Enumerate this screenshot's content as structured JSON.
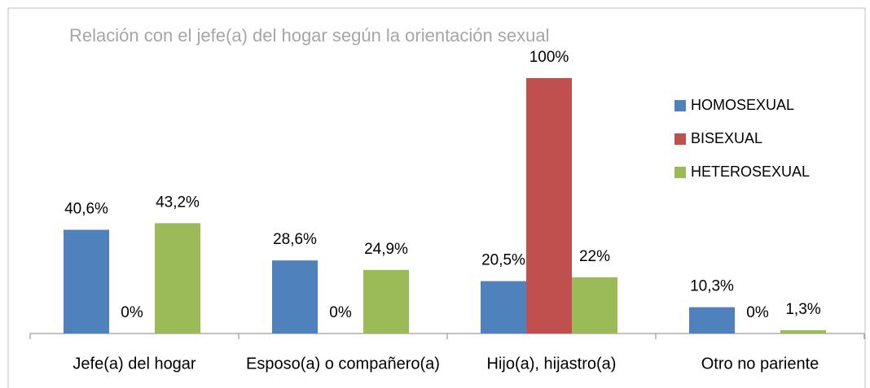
{
  "chart_data": {
    "type": "bar",
    "title": "Relación con el jefe(a) del hogar según la orientación sexual",
    "categories": [
      "Jefe(a) del hogar",
      "Esposo(a) o compañero(a)",
      "Hijo(a), hijastro(a)",
      "Otro no pariente"
    ],
    "series": [
      {
        "name": "HOMOSEXUAL",
        "color": "#4f81bd",
        "values": [
          40.6,
          28.6,
          20.5,
          10.3
        ],
        "value_labels": [
          "40,6%",
          "28,6%",
          "20,5%",
          "10,3%"
        ]
      },
      {
        "name": "BISEXUAL",
        "color": "#c0504d",
        "values": [
          0,
          0,
          100,
          0
        ],
        "value_labels": [
          "0%",
          "0%",
          "100%",
          "0%"
        ]
      },
      {
        "name": "HETEROSEXUAL",
        "color": "#9bbb59",
        "values": [
          43.2,
          24.9,
          22,
          1.3
        ],
        "value_labels": [
          "43,2%",
          "24,9%",
          "22%",
          "1,3%"
        ]
      }
    ],
    "ylim": [
      0,
      100
    ],
    "legend": "right"
  }
}
